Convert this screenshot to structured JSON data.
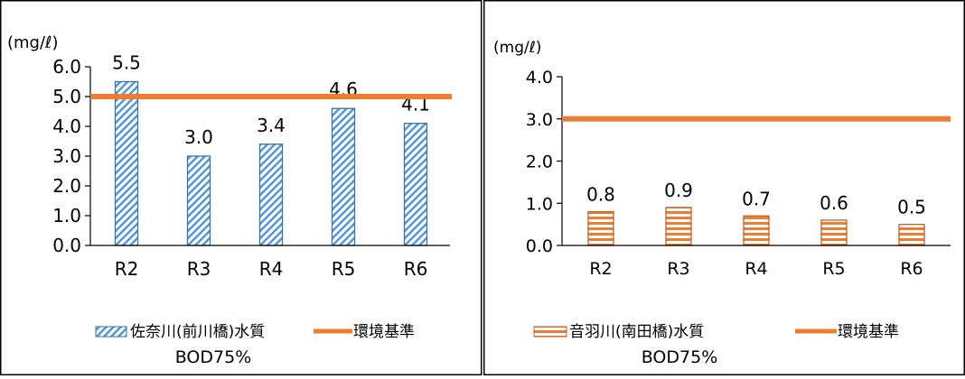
{
  "chart_data": [
    {
      "type": "bar",
      "unit_label": "(mg/ℓ)",
      "categories": [
        "R2",
        "R3",
        "R4",
        "R5",
        "R6"
      ],
      "series": [
        {
          "name": "佐奈川(前川橋)水質",
          "values": [
            5.5,
            3.0,
            3.4,
            4.6,
            4.1
          ],
          "pattern": "diagonal-stripes",
          "color": "#5b9bd5"
        },
        {
          "name": "環境基準",
          "type": "line",
          "value": 5.0,
          "color": "#ed7d31"
        }
      ],
      "legend_caption": "BOD75%",
      "y_ticks": [
        "0.0",
        "1.0",
        "2.0",
        "3.0",
        "4.0",
        "5.0",
        "6.0"
      ],
      "ylim": [
        0,
        6
      ],
      "data_labels": [
        "5.5",
        "3.0",
        "3.4",
        "4.6",
        "4.1"
      ],
      "grid": false,
      "legend_position": "bottom"
    },
    {
      "type": "bar",
      "unit_label": "(mg/ℓ)",
      "categories": [
        "R2",
        "R3",
        "R4",
        "R5",
        "R6"
      ],
      "series": [
        {
          "name": "音羽川(南田橋)水質",
          "values": [
            0.8,
            0.9,
            0.7,
            0.6,
            0.5
          ],
          "pattern": "horizontal-stripes",
          "color": "#ed7d31"
        },
        {
          "name": "環境基準",
          "type": "line",
          "value": 3.0,
          "color": "#ed7d31"
        }
      ],
      "legend_caption": "BOD75%",
      "y_ticks": [
        "0.0",
        "1.0",
        "2.0",
        "3.0",
        "4.0"
      ],
      "ylim": [
        0,
        4
      ],
      "data_labels": [
        "0.8",
        "0.9",
        "0.7",
        "0.6",
        "0.5"
      ],
      "grid": false,
      "legend_position": "bottom"
    }
  ]
}
